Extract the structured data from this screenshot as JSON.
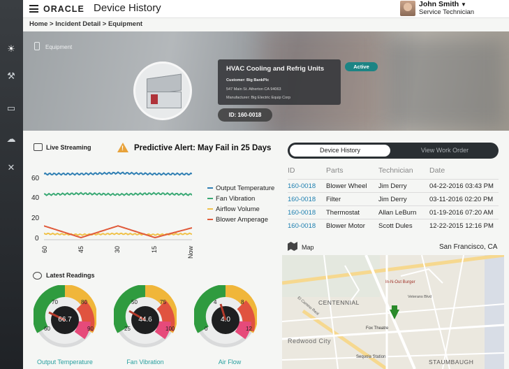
{
  "app": {
    "logo": "ORACLE",
    "title": "Device History"
  },
  "user": {
    "name": "John Smith",
    "role": "Service Technician"
  },
  "breadcrumb": "Home > Incident Detail > Equipment",
  "sidebar": {
    "icons": [
      "dashboard-icon",
      "tools-icon",
      "monitor-icon",
      "cloud-icon",
      "wrench-icon"
    ]
  },
  "equipment": {
    "section_label": "Equipment",
    "name": "HVAC Cooling and Refrig Units",
    "customer": "Customer: Big BankPlc",
    "address": "547 Main St. Atherton CA 94063",
    "manufacturer": "Manufacturer: Big Electric Equip Corp",
    "id": "ID: 160-0018",
    "status": "Active"
  },
  "live": {
    "title": "Live Streaming",
    "alert": "Predictive Alert: May Fail in 25 Days",
    "chart_data": {
      "type": "line",
      "x": [
        "60",
        "45",
        "30",
        "15",
        "Now"
      ],
      "yticks": [
        0,
        20,
        40,
        60
      ],
      "ylim": [
        0,
        70
      ],
      "series": [
        {
          "name": "Output Temperature",
          "color": "#2f7fb3",
          "values": [
            65,
            65,
            66,
            65,
            65
          ]
        },
        {
          "name": "Fan Vibration",
          "color": "#3aa974",
          "values": [
            44,
            45,
            44,
            45,
            44
          ]
        },
        {
          "name": "Airflow Volume",
          "color": "#f0c24a",
          "values": [
            4,
            3,
            4,
            3,
            4
          ]
        },
        {
          "name": "Blower Amperage",
          "color": "#e05a3a",
          "values": [
            12,
            0,
            12,
            0,
            10
          ]
        }
      ]
    }
  },
  "readings": {
    "title": "Latest Readings",
    "gauges": [
      {
        "label": "Output Temperature",
        "value": "66.7",
        "ticks": [
          "60",
          "70",
          "80",
          "90"
        ]
      },
      {
        "label": "Fan Vibration",
        "value": "44.6",
        "ticks": [
          "25",
          "50",
          "75",
          "100"
        ]
      },
      {
        "label": "Air Flow",
        "value": "4.0",
        "ticks": [
          "0",
          "4",
          "8",
          "12"
        ]
      }
    ]
  },
  "history": {
    "tabs": [
      "Device History",
      "View Work Order"
    ],
    "headers": [
      "ID",
      "Parts",
      "Technician",
      "Date"
    ],
    "rows": [
      [
        "160-0018",
        "Blower Wheel",
        "Jim Derry",
        "04-22-2016 03:43 PM"
      ],
      [
        "160-0018",
        "Filter",
        "Jim Derry",
        "03-11-2016 02:20 PM"
      ],
      [
        "160-0018",
        "Thermostat",
        "Allan LeBurn",
        "01-19-2016 07:20 AM"
      ],
      [
        "160-0018",
        "Blower Motor",
        "Scott Dules",
        "12-22-2015 12:16 PM"
      ]
    ]
  },
  "map": {
    "title": "Map",
    "location": "San Francisco, CA",
    "labels": [
      "CENTENNIAL",
      "Redwood City",
      "STAUMBAUGH",
      "In-N-Out Burger",
      "Fox Theatre",
      "Sequoia Station",
      "Veterans Blvd",
      "El Camino Real"
    ]
  }
}
